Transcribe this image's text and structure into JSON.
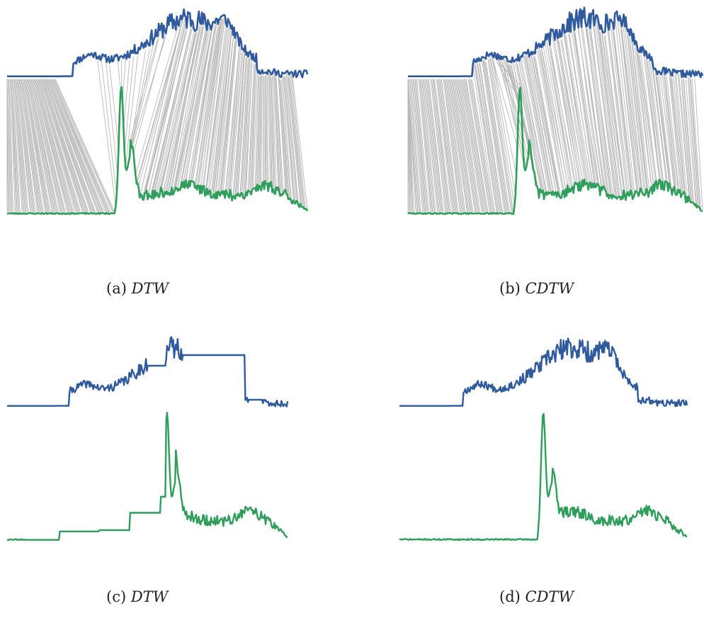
{
  "figure": {
    "panels": [
      {
        "id": "a",
        "label": "(a)",
        "name": "DTW",
        "kind": "alignment",
        "warped": false,
        "lines": "dense"
      },
      {
        "id": "b",
        "label": "(b)",
        "name": "CDTW",
        "kind": "alignment",
        "warped": false,
        "lines": "banded"
      },
      {
        "id": "c",
        "label": "(c)",
        "name": "DTW",
        "kind": "warped",
        "warped": true
      },
      {
        "id": "d",
        "label": "(d)",
        "name": "CDTW",
        "kind": "warped",
        "warped": false
      }
    ]
  },
  "chart_data": [
    {
      "type": "line",
      "title": "",
      "panel": "(a) DTW",
      "series": [
        {
          "color": "#2f5b9e"
        },
        {
          "color": "#2e9e5a"
        }
      ],
      "alignment_line_color": "#b8b8b8"
    },
    {
      "type": "line",
      "title": "",
      "panel": "(b) CDTW",
      "series": [
        {
          "color": "#2f5b9e"
        },
        {
          "color": "#2e9e5a"
        }
      ],
      "alignment_line_color": "#b8b8b8"
    },
    {
      "type": "line",
      "title": "",
      "panel": "(c) DTW",
      "series": [
        {
          "color": "#2f5b9e"
        },
        {
          "color": "#2e9e5a"
        }
      ]
    },
    {
      "type": "line",
      "title": "",
      "panel": "(d) CDTW",
      "series": [
        {
          "color": "#2f5b9e"
        },
        {
          "color": "#2e9e5a"
        }
      ]
    }
  ],
  "colors": {
    "blue": "#2f5b9e",
    "green": "#2e9e5a",
    "gray": "#b8b8b8"
  }
}
